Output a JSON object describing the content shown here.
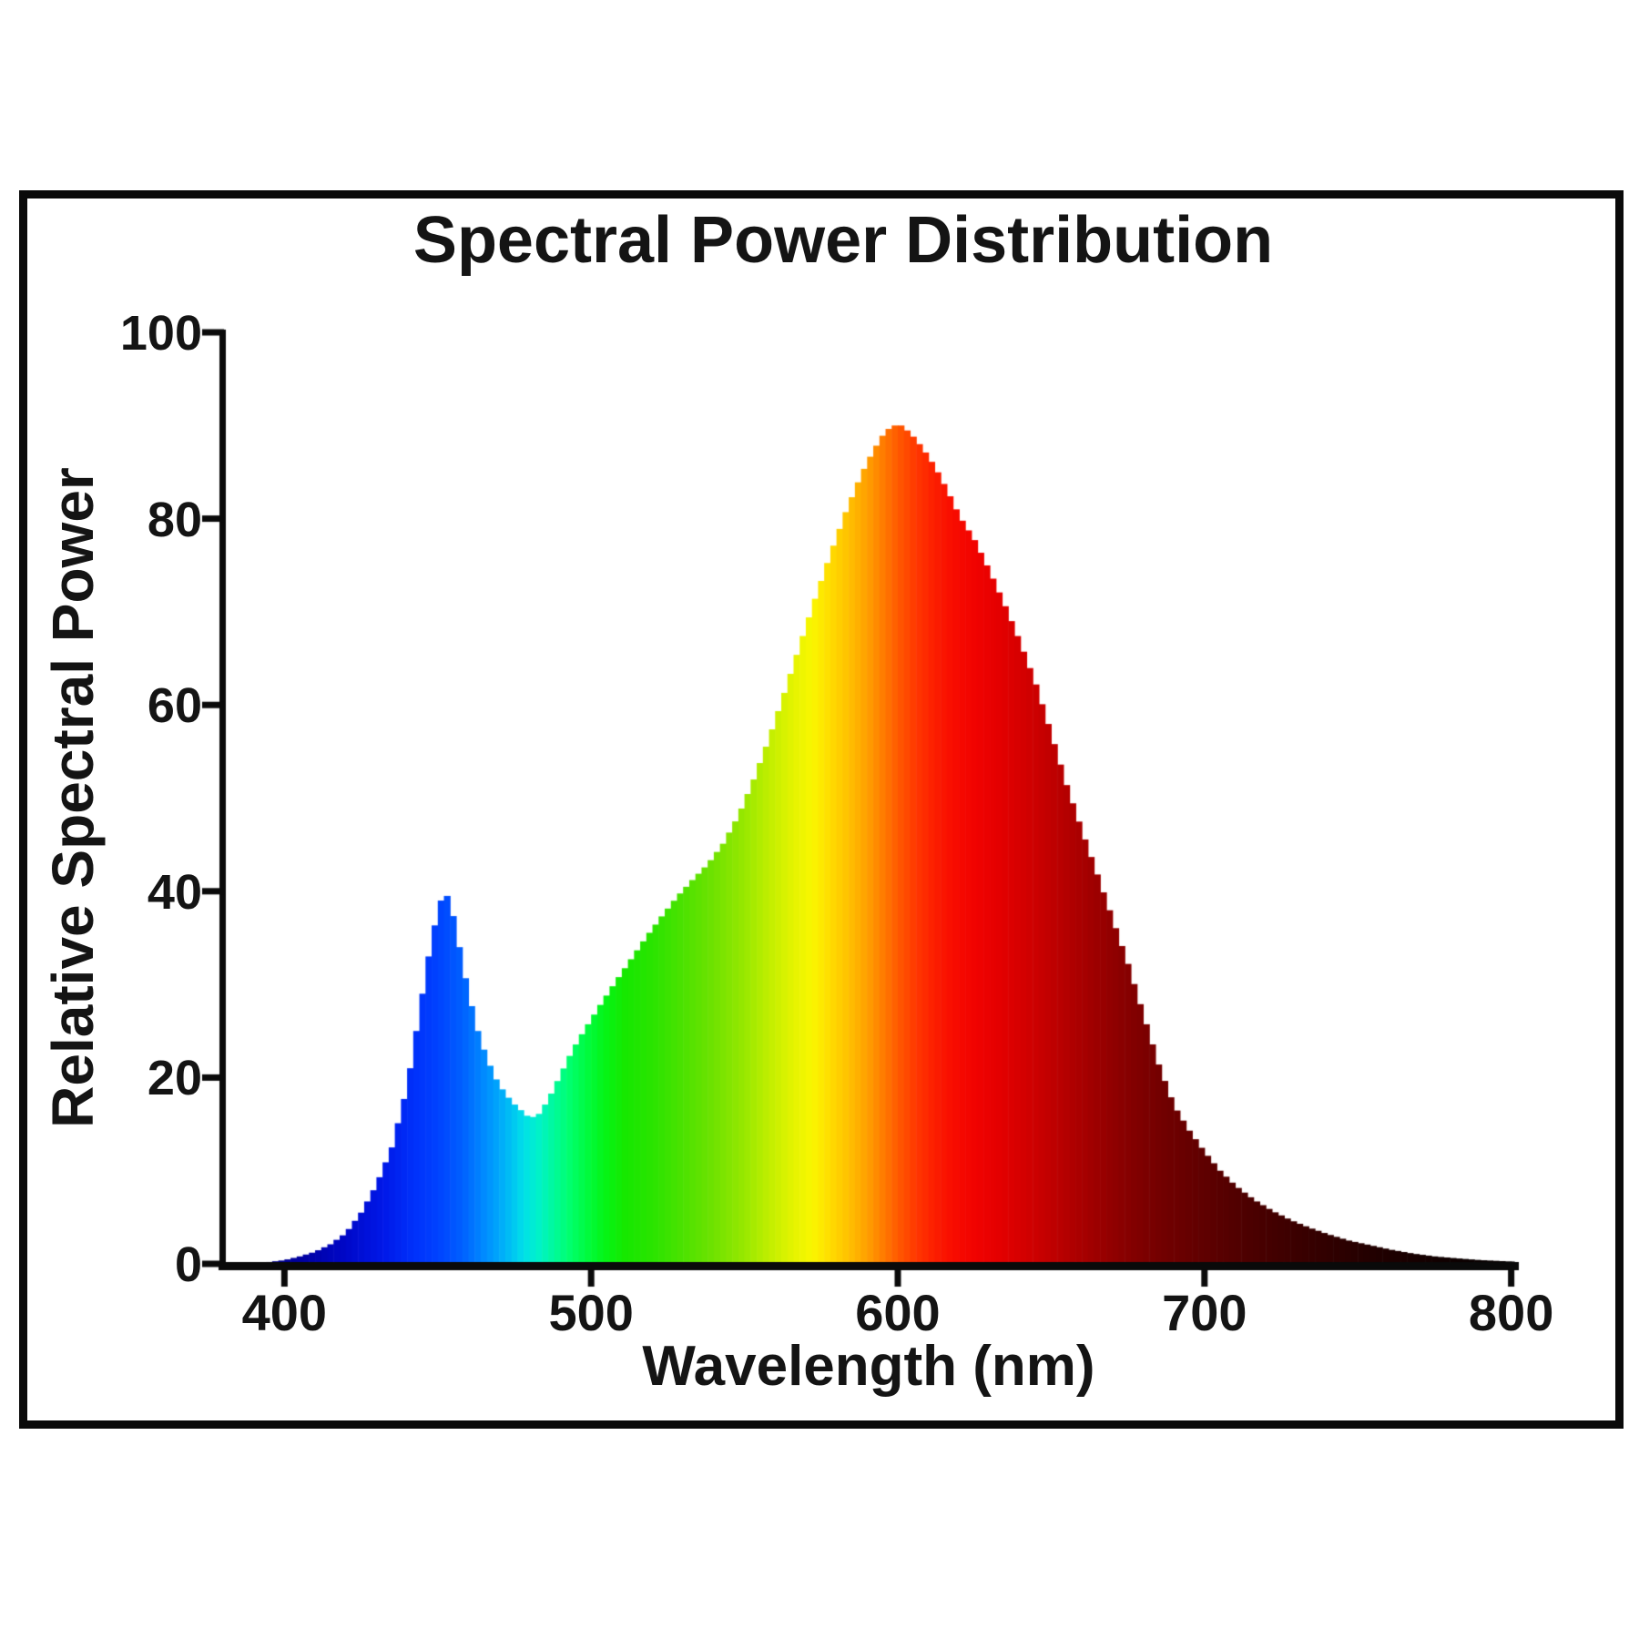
{
  "chart_data": {
    "type": "area",
    "title": "Spectral Power Distribution",
    "xlabel": "Wavelength (nm)",
    "ylabel": "Relative Spectral Power",
    "x_domain": [
      380,
      801
    ],
    "ylim": [
      0,
      100
    ],
    "x_ticks": [
      "400",
      "500",
      "600",
      "700",
      "800"
    ],
    "x_tick_values": [
      400,
      500,
      600,
      700,
      800
    ],
    "y_ticks": [
      "0",
      "20",
      "40",
      "60",
      "80",
      "100"
    ],
    "y_tick_values": [
      0,
      20,
      40,
      60,
      80,
      100
    ],
    "grid": false,
    "legend_position": "none",
    "fill_style": "spectral-gradient-by-wavelength",
    "series": [
      {
        "name": "Relative Spectral Power",
        "x": [
          380,
          385,
          390,
          395,
          400,
          405,
          410,
          415,
          420,
          425,
          430,
          435,
          440,
          444,
          447,
          450,
          452,
          454,
          457,
          460,
          463,
          466,
          469,
          472,
          475,
          478,
          480,
          483,
          486,
          490,
          494,
          498,
          503,
          508,
          513,
          518,
          523,
          528,
          533,
          538,
          543,
          548,
          553,
          558,
          563,
          568,
          573,
          578,
          583,
          588,
          592,
          595,
          598,
          601,
          604,
          608,
          612,
          616,
          620,
          625,
          630,
          635,
          640,
          645,
          650,
          655,
          660,
          665,
          670,
          675,
          680,
          685,
          690,
          695,
          700,
          705,
          710,
          716,
          722,
          728,
          734,
          740,
          747,
          754,
          761,
          768,
          775,
          782,
          790,
          800
        ],
        "y": [
          0,
          0.05,
          0.1,
          0.2,
          0.4,
          0.8,
          1.3,
          2.1,
          3.3,
          5.5,
          8.5,
          12.5,
          19,
          27,
          33,
          38,
          40,
          39,
          34,
          29,
          25,
          22,
          19.8,
          18.2,
          17.1,
          16.2,
          15.6,
          16.1,
          17.6,
          20.3,
          23,
          25.2,
          27.8,
          30.3,
          32.7,
          35.1,
          37.3,
          39.4,
          41.2,
          42.9,
          45.1,
          48.1,
          52,
          56.4,
          61.3,
          66.4,
          71.4,
          76.2,
          80.7,
          84.7,
          87.3,
          88.9,
          90,
          90,
          89.2,
          87.6,
          85.6,
          83.1,
          80.3,
          77.7,
          74.3,
          70.6,
          66.6,
          62.2,
          56.9,
          51.4,
          46.5,
          41.8,
          37,
          32.2,
          26.8,
          21.4,
          17,
          14.3,
          12,
          10,
          8.4,
          6.9,
          5.7,
          4.7,
          3.9,
          3.2,
          2.5,
          2,
          1.5,
          1.1,
          0.8,
          0.6,
          0.4,
          0.25
        ]
      }
    ],
    "spectral_color_stops": [
      [
        380,
        "#00006E"
      ],
      [
        405,
        "#0000A0"
      ],
      [
        420,
        "#0008C8"
      ],
      [
        432,
        "#0018E8"
      ],
      [
        442,
        "#0030FA"
      ],
      [
        450,
        "#0042FF"
      ],
      [
        458,
        "#0060FF"
      ],
      [
        466,
        "#0090FF"
      ],
      [
        472,
        "#00B4F8"
      ],
      [
        478,
        "#00E0E8"
      ],
      [
        483,
        "#00F2C8"
      ],
      [
        488,
        "#00FA9A"
      ],
      [
        493,
        "#00FF6E"
      ],
      [
        499,
        "#00FB3C"
      ],
      [
        505,
        "#06F414"
      ],
      [
        511,
        "#16E800"
      ],
      [
        520,
        "#2AE400"
      ],
      [
        530,
        "#4CE200"
      ],
      [
        540,
        "#70E200"
      ],
      [
        550,
        "#98E800"
      ],
      [
        558,
        "#C0EE00"
      ],
      [
        566,
        "#E4F400"
      ],
      [
        572,
        "#FAF600"
      ],
      [
        578,
        "#FFDC00"
      ],
      [
        584,
        "#FFC000"
      ],
      [
        590,
        "#FFA000"
      ],
      [
        595,
        "#FF7D00"
      ],
      [
        600,
        "#FF5A00"
      ],
      [
        606,
        "#FF3700"
      ],
      [
        612,
        "#FC1E00"
      ],
      [
        618,
        "#F80C00"
      ],
      [
        626,
        "#F00200"
      ],
      [
        635,
        "#E00000"
      ],
      [
        645,
        "#CC0000"
      ],
      [
        655,
        "#B40000"
      ],
      [
        665,
        "#9C0000"
      ],
      [
        675,
        "#860000"
      ],
      [
        685,
        "#740000"
      ],
      [
        695,
        "#660000"
      ],
      [
        705,
        "#580000"
      ],
      [
        715,
        "#4C0000"
      ],
      [
        725,
        "#400000"
      ],
      [
        735,
        "#360000"
      ],
      [
        745,
        "#2C0000"
      ],
      [
        755,
        "#220000"
      ],
      [
        765,
        "#1A0000"
      ],
      [
        775,
        "#120000"
      ],
      [
        785,
        "#0C0000"
      ],
      [
        801,
        "#040000"
      ]
    ],
    "colors": {
      "background": "#ffffff",
      "frame": "#0a0a0a",
      "axis": "#0a0a0a",
      "text": "#141414"
    }
  }
}
